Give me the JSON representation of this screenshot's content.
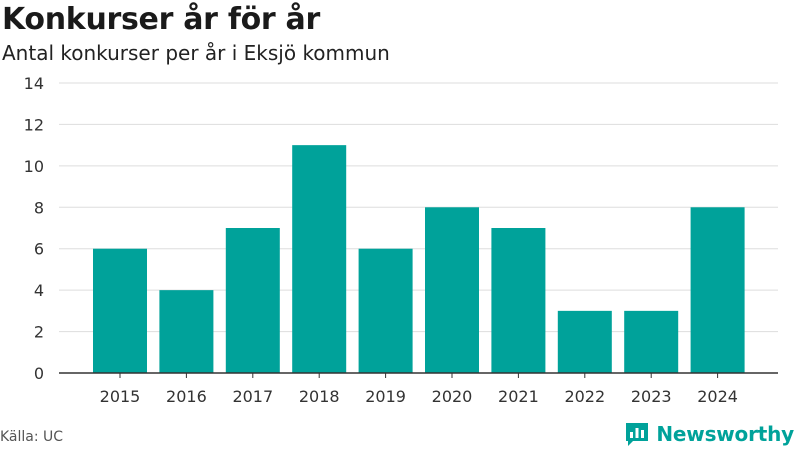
{
  "header": {
    "title": "Konkurser år för år",
    "subtitle": "Antal konkurser per år i Eksjö kommun"
  },
  "footer": {
    "source": "Källa: UC",
    "brand": "Newsworthy",
    "brand_icon": "newsworthy-logo-icon"
  },
  "colors": {
    "bar": "#00a29a",
    "grid": "#dddddd",
    "axis": "#333333",
    "brand": "#00a29a"
  },
  "chart_data": {
    "type": "bar",
    "title": "Konkurser år för år",
    "subtitle": "Antal konkurser per år i Eksjö kommun",
    "xlabel": "",
    "ylabel": "",
    "categories": [
      "2015",
      "2016",
      "2017",
      "2018",
      "2019",
      "2020",
      "2021",
      "2022",
      "2023",
      "2024"
    ],
    "values": [
      6,
      4,
      7,
      11,
      6,
      8,
      7,
      3,
      3,
      8
    ],
    "ylim": [
      0,
      14
    ],
    "yticks": [
      0,
      2,
      4,
      6,
      8,
      10,
      12,
      14
    ],
    "grid": true,
    "legend": "none"
  }
}
